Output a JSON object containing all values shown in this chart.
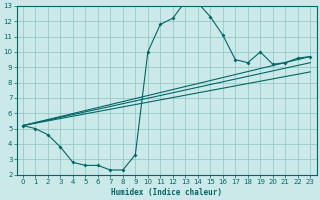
{
  "xlabel": "Humidex (Indice chaleur)",
  "bg_color": "#cce9e9",
  "grid_color": "#89c4c4",
  "line_color": "#006666",
  "xlim": [
    -0.5,
    23.5
  ],
  "ylim": [
    2,
    13
  ],
  "xticks": [
    0,
    1,
    2,
    3,
    4,
    5,
    6,
    7,
    8,
    9,
    10,
    11,
    12,
    13,
    14,
    15,
    16,
    17,
    18,
    19,
    20,
    21,
    22,
    23
  ],
  "yticks": [
    2,
    3,
    4,
    5,
    6,
    7,
    8,
    9,
    10,
    11,
    12,
    13
  ],
  "curve1_x": [
    0,
    1,
    2,
    3,
    4,
    5,
    6,
    7,
    8,
    9,
    10,
    11,
    12,
    13,
    14,
    15,
    16,
    17,
    18,
    19,
    20,
    21,
    22,
    23
  ],
  "curve1_y": [
    5.2,
    5.0,
    4.6,
    3.8,
    2.8,
    2.6,
    2.6,
    2.3,
    2.3,
    3.3,
    10.0,
    11.8,
    12.2,
    13.3,
    13.2,
    12.3,
    11.1,
    9.5,
    9.3,
    10.0,
    9.2,
    9.3,
    9.6,
    9.7
  ],
  "line1_x": [
    0,
    23
  ],
  "line1_y": [
    5.2,
    9.7
  ],
  "line2_x": [
    0,
    23
  ],
  "line2_y": [
    5.2,
    9.3
  ],
  "line3_x": [
    0,
    23
  ],
  "line3_y": [
    5.2,
    8.7
  ]
}
